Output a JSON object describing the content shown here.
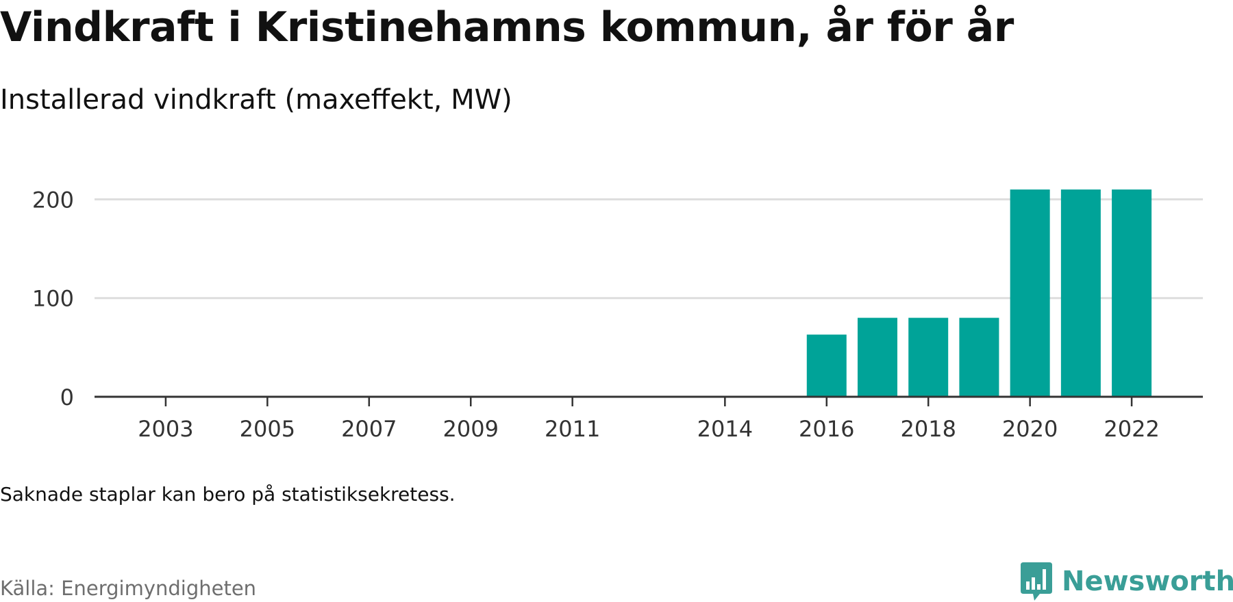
{
  "title": "Vindkraft i Kristinehamns kommun, år för år",
  "subtitle": "Installerad vindkraft (maxeffekt, MW)",
  "note": "Saknade staplar kan bero på statistiksekretess.",
  "source": "Källa: Energimyndigheten",
  "brand": {
    "name": "Newsworthy",
    "color": "#3a9e97"
  },
  "colors": {
    "bar": "#00a398",
    "grid": "#dddddd",
    "axis": "#333333"
  },
  "chart_data": {
    "type": "bar",
    "x": [
      2016,
      2017,
      2018,
      2019,
      2020,
      2021,
      2022
    ],
    "values": [
      63,
      80,
      80,
      80,
      210,
      210,
      210
    ],
    "x_range": [
      2001.6,
      2023.4
    ],
    "ylim": [
      0,
      210
    ],
    "y_ticks": [
      0,
      100,
      200
    ],
    "x_ticks": [
      2003,
      2005,
      2007,
      2009,
      2011,
      2014,
      2016,
      2018,
      2020,
      2022
    ],
    "grid": true,
    "legend": "none",
    "xlabel": "",
    "ylabel": ""
  }
}
